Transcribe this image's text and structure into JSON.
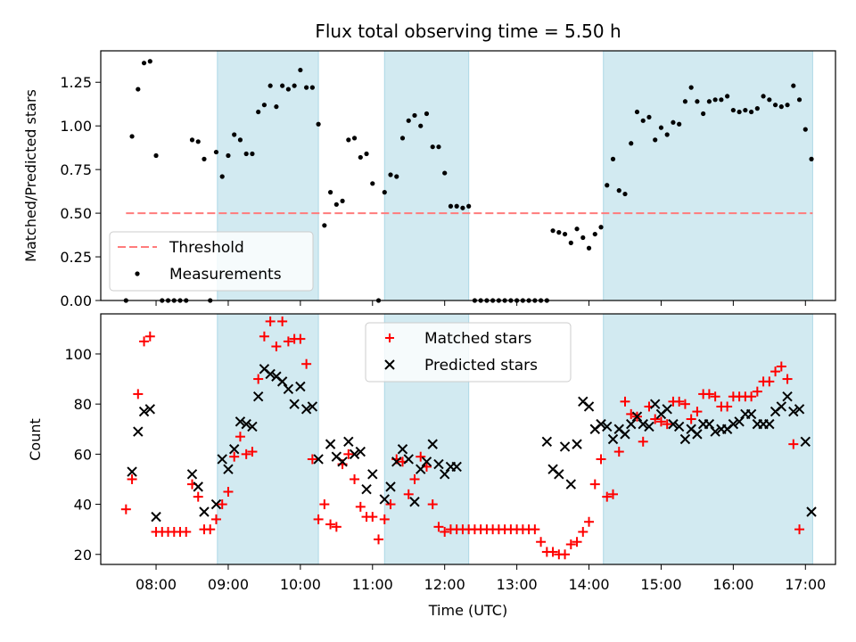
{
  "chart_data": [
    {
      "type": "scatter",
      "title": "Flux total observing time = 5.50 h",
      "xlabel": "",
      "ylabel": "Matched/Predicted stars",
      "xlim": [
        "07:14",
        "17:25"
      ],
      "ylim": [
        0,
        1.43
      ],
      "y_ticks": [
        "0.00",
        "0.25",
        "0.50",
        "0.75",
        "1.00",
        "1.25"
      ],
      "grid": false,
      "legend_position": "lower-left",
      "shaded_intervals": [
        [
          "08:51",
          "10:15"
        ],
        [
          "11:10",
          "12:20"
        ],
        [
          "14:12",
          "17:06"
        ]
      ],
      "shade_color": "#add8e6",
      "threshold": {
        "name": "Threshold",
        "value": 0.5,
        "x_range": [
          "07:35",
          "17:06"
        ],
        "color": "#ff8080",
        "style": "dashed"
      },
      "series": [
        {
          "name": "Measurements",
          "color": "#000000",
          "marker": "dot",
          "x": [
            "07:35",
            "07:40",
            "07:45",
            "07:50",
            "07:55",
            "08:00",
            "08:05",
            "08:10",
            "08:15",
            "08:20",
            "08:25",
            "08:30",
            "08:35",
            "08:40",
            "08:45",
            "08:50",
            "08:55",
            "09:00",
            "09:05",
            "09:10",
            "09:15",
            "09:20",
            "09:25",
            "09:30",
            "09:35",
            "09:40",
            "09:45",
            "09:50",
            "09:55",
            "10:00",
            "10:05",
            "10:10",
            "10:15",
            "10:20",
            "10:25",
            "10:30",
            "10:35",
            "10:40",
            "10:45",
            "10:50",
            "10:55",
            "11:00",
            "11:05",
            "11:10",
            "11:15",
            "11:20",
            "11:25",
            "11:30",
            "11:35",
            "11:40",
            "11:45",
            "11:50",
            "11:55",
            "12:00",
            "12:05",
            "12:10",
            "12:15",
            "12:20",
            "12:25",
            "12:30",
            "12:35",
            "12:40",
            "12:45",
            "12:50",
            "12:55",
            "13:00",
            "13:05",
            "13:10",
            "13:15",
            "13:20",
            "13:25",
            "13:30",
            "13:35",
            "13:40",
            "13:45",
            "13:50",
            "13:55",
            "14:00",
            "14:05",
            "14:10",
            "14:15",
            "14:20",
            "14:25",
            "14:30",
            "14:35",
            "14:40",
            "14:45",
            "14:50",
            "14:55",
            "15:00",
            "15:05",
            "15:10",
            "15:15",
            "15:20",
            "15:25",
            "15:30",
            "15:35",
            "15:40",
            "15:45",
            "15:50",
            "15:55",
            "16:00",
            "16:05",
            "16:10",
            "16:15",
            "16:20",
            "16:25",
            "16:30",
            "16:35",
            "16:40",
            "16:45",
            "16:50",
            "16:55",
            "17:00",
            "17:05"
          ],
          "values": [
            0.0,
            0.94,
            1.21,
            1.36,
            1.37,
            0.83,
            0.0,
            0.0,
            0.0,
            0.0,
            0.0,
            0.92,
            0.91,
            0.81,
            0.0,
            0.85,
            0.71,
            0.83,
            0.95,
            0.92,
            0.84,
            0.84,
            1.08,
            1.12,
            1.23,
            1.11,
            1.23,
            1.21,
            1.23,
            1.32,
            1.22,
            1.22,
            1.01,
            0.43,
            0.62,
            0.55,
            0.57,
            0.92,
            0.93,
            0.82,
            0.84,
            0.67,
            0.0,
            0.62,
            0.72,
            0.71,
            0.93,
            1.03,
            1.06,
            1.0,
            1.07,
            0.88,
            0.88,
            0.73,
            0.54,
            0.54,
            0.53,
            0.54,
            0.0,
            0.0,
            0.0,
            0.0,
            0.0,
            0.0,
            0.0,
            0.0,
            0.0,
            0.0,
            0.0,
            0.0,
            0.0,
            0.4,
            0.39,
            0.38,
            0.33,
            0.41,
            0.36,
            0.3,
            0.38,
            0.42,
            0.66,
            0.81,
            0.63,
            0.61,
            0.9,
            1.08,
            1.03,
            1.05,
            0.92,
            0.99,
            0.95,
            1.02,
            1.01,
            1.14,
            1.22,
            1.14,
            1.07,
            1.14,
            1.15,
            1.15,
            1.17,
            1.09,
            1.08,
            1.09,
            1.08,
            1.1,
            1.17,
            1.15,
            1.12,
            1.11,
            1.12,
            1.23,
            1.15,
            0.98,
            0.81
          ]
        }
      ]
    },
    {
      "type": "scatter",
      "title": "",
      "xlabel": "Time (UTC)",
      "ylabel": "Count",
      "xlim": [
        "07:14",
        "17:25"
      ],
      "ylim": [
        16,
        116
      ],
      "x_ticks": [
        "08:00",
        "09:00",
        "10:00",
        "11:00",
        "12:00",
        "13:00",
        "14:00",
        "15:00",
        "16:00",
        "17:00"
      ],
      "y_ticks": [
        "20",
        "40",
        "60",
        "80",
        "100"
      ],
      "grid": false,
      "legend_position": "top-center",
      "shaded_intervals": [
        [
          "08:51",
          "10:15"
        ],
        [
          "11:10",
          "12:20"
        ],
        [
          "14:12",
          "17:06"
        ]
      ],
      "shade_color": "#add8e6",
      "x": [
        "07:35",
        "07:40",
        "07:45",
        "07:50",
        "07:55",
        "08:00",
        "08:05",
        "08:10",
        "08:15",
        "08:20",
        "08:25",
        "08:30",
        "08:35",
        "08:40",
        "08:45",
        "08:50",
        "08:55",
        "09:00",
        "09:05",
        "09:10",
        "09:15",
        "09:20",
        "09:25",
        "09:30",
        "09:35",
        "09:40",
        "09:45",
        "09:50",
        "09:55",
        "10:00",
        "10:05",
        "10:10",
        "10:15",
        "10:20",
        "10:25",
        "10:30",
        "10:35",
        "10:40",
        "10:45",
        "10:50",
        "10:55",
        "11:00",
        "11:05",
        "11:10",
        "11:15",
        "11:20",
        "11:25",
        "11:30",
        "11:35",
        "11:40",
        "11:45",
        "11:50",
        "11:55",
        "12:00",
        "12:05",
        "12:10",
        "12:15",
        "12:20",
        "12:25",
        "12:30",
        "12:35",
        "12:40",
        "12:45",
        "12:50",
        "12:55",
        "13:00",
        "13:05",
        "13:10",
        "13:15",
        "13:20",
        "13:25",
        "13:30",
        "13:35",
        "13:40",
        "13:45",
        "13:50",
        "13:55",
        "14:00",
        "14:05",
        "14:10",
        "14:15",
        "14:20",
        "14:25",
        "14:30",
        "14:35",
        "14:40",
        "14:45",
        "14:50",
        "14:55",
        "15:00",
        "15:05",
        "15:10",
        "15:15",
        "15:20",
        "15:25",
        "15:30",
        "15:35",
        "15:40",
        "15:45",
        "15:50",
        "15:55",
        "16:00",
        "16:05",
        "16:10",
        "16:15",
        "16:20",
        "16:25",
        "16:30",
        "16:35",
        "16:40",
        "16:45",
        "16:50",
        "16:55",
        "17:00",
        "17:05"
      ],
      "series": [
        {
          "name": "Matched stars",
          "color": "#ff0000",
          "marker": "plus",
          "values": [
            38,
            50,
            84,
            105,
            107,
            29,
            29,
            29,
            29,
            29,
            29,
            48,
            43,
            30,
            30,
            34,
            40,
            45,
            59,
            67,
            60,
            61,
            90,
            107,
            113,
            103,
            113,
            105,
            106,
            106,
            96,
            58,
            34,
            40,
            32,
            31,
            56,
            60,
            50,
            39,
            35,
            35,
            26,
            34,
            40,
            58,
            57,
            44,
            50,
            59,
            55,
            40,
            31,
            29,
            30,
            30,
            30,
            30,
            30,
            30,
            30,
            30,
            30,
            30,
            30,
            30,
            30,
            30,
            30,
            25,
            21,
            21,
            20,
            20,
            24,
            25,
            29,
            33,
            48,
            58,
            43,
            44,
            61,
            81,
            76,
            75,
            65,
            79,
            74,
            73,
            72,
            81,
            81,
            80,
            74,
            77,
            84,
            84,
            83,
            79,
            79,
            83,
            83,
            83,
            83,
            85,
            89,
            89,
            93,
            95,
            90,
            64,
            30
          ]
        },
        {
          "name": "Predicted stars",
          "color": "#000000",
          "marker": "x",
          "values": [
            null,
            53,
            69,
            77,
            78,
            35,
            null,
            null,
            null,
            null,
            null,
            52,
            47,
            37,
            null,
            40,
            58,
            54,
            62,
            73,
            72,
            71,
            83,
            94,
            92,
            91,
            89,
            86,
            80,
            87,
            78,
            79,
            58,
            null,
            64,
            59,
            57,
            65,
            60,
            61,
            46,
            52,
            null,
            42,
            47,
            57,
            62,
            58,
            41,
            54,
            57,
            64,
            56,
            52,
            55,
            55,
            null,
            null,
            null,
            null,
            null,
            null,
            null,
            null,
            null,
            null,
            null,
            null,
            null,
            null,
            65,
            54,
            52,
            63,
            48,
            64,
            81,
            79,
            70,
            72,
            71,
            66,
            70,
            68,
            72,
            75,
            72,
            71,
            80,
            76,
            78,
            72,
            71,
            66,
            70,
            68,
            72,
            72,
            69,
            70,
            70,
            72,
            73,
            76,
            76,
            72,
            72,
            72,
            77,
            79,
            83,
            77,
            78,
            65,
            37
          ]
        }
      ]
    }
  ]
}
